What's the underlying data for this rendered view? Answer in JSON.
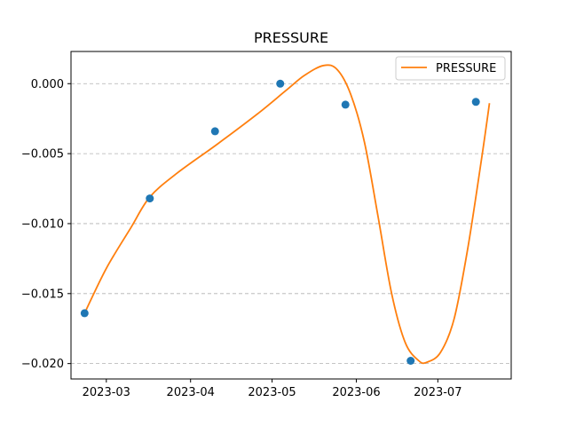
{
  "chart_data": {
    "type": "line",
    "title": "PRESSURE",
    "xlabel": "",
    "ylabel": "",
    "x_type": "date",
    "xlim": [
      "2023-02-16",
      "2023-07-28"
    ],
    "ylim": [
      -0.0211,
      0.0023
    ],
    "x_ticks": [
      "2023-03-01",
      "2023-04-01",
      "2023-05-01",
      "2023-06-01",
      "2023-07-01"
    ],
    "x_tick_labels": [
      "2023-03",
      "2023-04",
      "2023-05",
      "2023-06",
      "2023-07"
    ],
    "y_ticks": [
      0.0,
      -0.005,
      -0.01,
      -0.015,
      -0.02
    ],
    "y_tick_labels": [
      "0.000",
      "−0.005",
      "−0.010",
      "−0.015",
      "−0.020"
    ],
    "grid": "y-dashed",
    "legend": "top-right",
    "series": [
      {
        "name": "PRESSURE",
        "style": "line",
        "color": "#ff7f0e",
        "x": [
          "2023-02-21",
          "2023-03-01",
          "2023-03-10",
          "2023-03-17",
          "2023-03-27",
          "2023-04-11",
          "2023-04-26",
          "2023-05-06",
          "2023-05-13",
          "2023-05-20",
          "2023-05-25",
          "2023-05-30",
          "2023-06-04",
          "2023-06-09",
          "2023-06-14",
          "2023-06-19",
          "2023-06-24",
          "2023-06-27",
          "2023-07-02",
          "2023-07-07",
          "2023-07-12",
          "2023-07-17",
          "2023-07-20"
        ],
        "y": [
          -0.0164,
          -0.0132,
          -0.0103,
          -0.0081,
          -0.0064,
          -0.0043,
          -0.0021,
          -0.0005,
          0.0006,
          0.0013,
          0.001,
          -0.0008,
          -0.0042,
          -0.0095,
          -0.015,
          -0.0185,
          -0.0198,
          -0.0199,
          -0.0192,
          -0.0168,
          -0.0118,
          -0.0055,
          -0.0014
        ]
      },
      {
        "name": "",
        "style": "scatter",
        "color": "#1f77b4",
        "x": [
          "2023-02-21",
          "2023-03-17",
          "2023-04-10",
          "2023-05-04",
          "2023-05-28",
          "2023-06-21",
          "2023-07-15"
        ],
        "y": [
          -0.0164,
          -0.0082,
          -0.0034,
          0.0,
          -0.0015,
          -0.0198,
          -0.0013
        ]
      }
    ]
  }
}
